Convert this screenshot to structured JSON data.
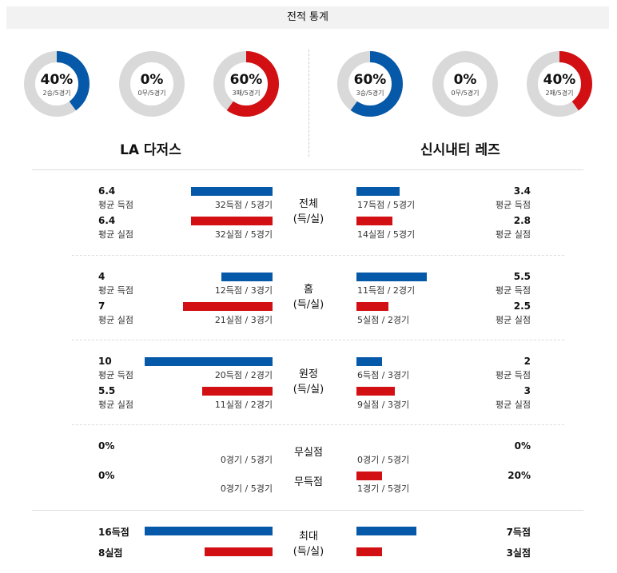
{
  "title": "전적 통계",
  "colors": {
    "blue": "#0659a8",
    "red": "#d20f12",
    "track": "#d9d9d9"
  },
  "donuts": [
    {
      "pct": "40%",
      "rec": "2승/5경기",
      "value": 0.4,
      "color": "#0659a8"
    },
    {
      "pct": "0%",
      "rec": "0무/5경기",
      "value": 0.0,
      "color": "#0659a8"
    },
    {
      "pct": "60%",
      "rec": "3패/5경기",
      "value": 0.6,
      "color": "#d20f12"
    },
    {
      "pct": "60%",
      "rec": "3승/5경기",
      "value": 0.6,
      "color": "#0659a8"
    },
    {
      "pct": "0%",
      "rec": "0무/5경기",
      "value": 0.0,
      "color": "#0659a8"
    },
    {
      "pct": "40%",
      "rec": "2패/5경기",
      "value": 0.4,
      "color": "#d20f12"
    }
  ],
  "teams": {
    "left": "LA 다저스",
    "right": "신시내티 레즈"
  },
  "sections": [
    {
      "cat1": "전체",
      "cat2": "(득/실)",
      "left": {
        "a_val": "6.4",
        "a_lab": "평균 득점",
        "a_cnt": "32득점 / 5경기",
        "b_val": "6.4",
        "b_lab": "평균 실점",
        "b_cnt": "32실점 / 5경기"
      },
      "right": {
        "a_val": "3.4",
        "a_lab": "평균 득점",
        "a_cnt": "17득점 / 5경기",
        "b_val": "2.8",
        "b_lab": "평균 실점",
        "b_cnt": "14실점 / 5경기"
      }
    },
    {
      "cat1": "홈",
      "cat2": "(득/실)",
      "left": {
        "a_val": "4",
        "a_lab": "평균 득점",
        "a_cnt": "12득점 / 3경기",
        "b_val": "7",
        "b_lab": "평균 실점",
        "b_cnt": "21실점 / 3경기"
      },
      "right": {
        "a_val": "5.5",
        "a_lab": "평균 득점",
        "a_cnt": "11득점 / 2경기",
        "b_val": "2.5",
        "b_lab": "평균 실점",
        "b_cnt": "5실점 / 2경기"
      }
    },
    {
      "cat1": "원정",
      "cat2": "(득/실)",
      "left": {
        "a_val": "10",
        "a_lab": "평균 득점",
        "a_cnt": "20득점 / 2경기",
        "b_val": "5.5",
        "b_lab": "평균 실점",
        "b_cnt": "11실점 / 2경기"
      },
      "right": {
        "a_val": "2",
        "a_lab": "평균 득점",
        "a_cnt": "6득점 / 3경기",
        "b_val": "3",
        "b_lab": "평균 실점",
        "b_cnt": "9실점 / 3경기"
      }
    }
  ],
  "shutout": {
    "cat_a": "무실점",
    "cat_b": "무득점",
    "left": {
      "a_val": "0%",
      "a_cnt": "0경기 / 5경기",
      "b_val": "0%",
      "b_cnt": "0경기 / 5경기"
    },
    "right": {
      "a_val": "0%",
      "a_cnt": "0경기 / 5경기",
      "b_val": "20%",
      "b_cnt": "1경기 / 5경기"
    }
  },
  "max": {
    "cat1": "최대",
    "cat2": "(득/실)",
    "left": {
      "a": "16득점",
      "b": "8실점"
    },
    "right": {
      "a": "7득점",
      "b": "3실점"
    }
  }
}
